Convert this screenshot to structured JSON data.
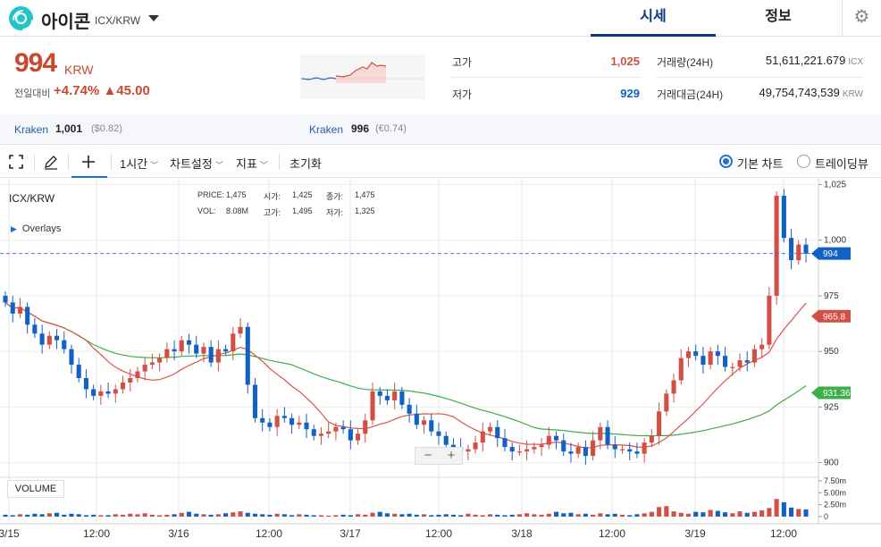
{
  "header": {
    "coin_name": "아이콘",
    "pair_code": "ICX/KRW",
    "tabs": [
      {
        "label": "시세",
        "active": true
      },
      {
        "label": "정보",
        "active": false
      }
    ]
  },
  "price": {
    "current": "994",
    "unit": "KRW",
    "change_label": "전일대비",
    "change_text": "+4.74% ▲45.00",
    "high_label": "고가",
    "high_value": "1,025",
    "low_label": "저가",
    "low_value": "929",
    "volume_label": "거래량(24H)",
    "volume_value": "51,611,221.679",
    "volume_unit": "ICX",
    "amount_label": "거래대금(24H)",
    "amount_value": "49,754,743,539",
    "amount_unit": "KRW"
  },
  "exchanges": [
    {
      "name": "Kraken",
      "price": "1,001",
      "sub": "($0.82)"
    },
    {
      "name": "Kraken",
      "price": "996",
      "sub": "(€0.74)"
    }
  ],
  "toolbar": {
    "interval": "1시간",
    "settings": "차트설정",
    "indicators": "지표",
    "reset": "초기화",
    "basic_chart": "기본 차트",
    "tradingview": "트레이딩뷰"
  },
  "legend": {
    "pair": "ICX/KRW",
    "price_label": "PRICE:",
    "price_value": "1,475",
    "open_label": "시가:",
    "open_value": "1,425",
    "close_label": "종가:",
    "close_value": "1,475",
    "vol_label": "VOL:",
    "vol_value": "8.08M",
    "high_label": "고가:",
    "high_value": "1,495",
    "low_label": "저가:",
    "low_value": "1,325",
    "overlays": "Overlays",
    "volume": "VOLUME"
  },
  "colors": {
    "up": "#d24f45",
    "down": "#1261c4",
    "ma_short": "#e0504a",
    "ma_long": "#3cae4a",
    "brand": "#093687"
  },
  "chart_data": {
    "type": "candlestick",
    "y_ticks": [
      "1,025",
      "1,000",
      "975",
      "950",
      "925",
      "900"
    ],
    "ylim": [
      895,
      1026
    ],
    "x_ticks": [
      "3/15",
      "12:00",
      "3/16",
      "12:00",
      "3/17",
      "12:00",
      "3/18",
      "12:00",
      "3/19",
      "12:00"
    ],
    "price_badges": [
      {
        "label": "994",
        "value": 994,
        "color": "#1261c4"
      },
      {
        "label": "965.8",
        "value": 965.8,
        "color": "#d24f45"
      },
      {
        "label": "931.36",
        "value": 931.36,
        "color": "#3cae4a"
      }
    ],
    "volume_ticks": [
      "7.50m",
      "5.00m",
      "2.50m",
      "0"
    ],
    "candles_close": [
      972,
      967,
      970,
      962,
      958,
      953,
      957,
      955,
      951,
      944,
      938,
      933,
      930,
      932,
      931,
      933,
      936,
      938,
      941,
      944,
      945,
      947,
      951,
      950,
      955,
      953,
      949,
      952,
      945,
      951,
      950,
      958,
      961,
      935,
      920,
      918,
      916,
      921,
      920,
      917,
      918,
      915,
      912,
      913,
      914,
      916,
      915,
      910,
      913,
      919,
      932,
      930,
      928,
      932,
      926,
      922,
      917,
      919,
      914,
      912,
      908,
      907,
      905,
      906,
      909,
      914,
      916,
      911,
      907,
      905,
      905,
      906,
      907,
      908,
      912,
      910,
      905,
      904,
      907,
      903,
      910,
      916,
      908,
      906,
      906,
      905,
      904,
      909,
      912,
      923,
      931,
      937,
      947,
      950,
      948,
      944,
      950,
      948,
      943,
      943,
      946,
      945,
      951,
      953,
      975,
      1020,
      1001,
      991,
      998,
      994
    ],
    "volume_values": [
      0.4,
      0.3,
      0.5,
      0.4,
      0.6,
      0.5,
      0.7,
      0.8,
      0.4,
      0.6,
      0.5,
      0.3,
      0.4,
      0.3,
      0.3,
      0.5,
      0.4,
      0.6,
      0.5,
      0.7,
      0.4,
      0.3,
      0.4,
      0.5,
      0.8,
      1.0,
      0.6,
      0.5,
      0.4,
      0.5,
      0.7,
      0.9,
      1.1,
      0.8,
      0.6,
      0.5,
      0.4,
      0.6,
      0.5,
      0.3,
      0.5,
      0.4,
      0.3,
      0.3,
      0.2,
      0.3,
      0.4,
      0.3,
      0.5,
      0.4,
      0.8,
      1.0,
      0.7,
      0.6,
      0.5,
      0.6,
      0.4,
      0.5,
      0.3,
      0.4,
      0.5,
      0.4,
      0.3,
      0.6,
      0.4,
      0.3,
      0.5,
      0.4,
      0.3,
      0.4,
      0.5,
      0.7,
      0.5,
      0.4,
      0.6,
      1.0,
      0.7,
      0.8,
      0.5,
      0.6,
      0.4,
      0.7,
      0.5,
      0.6,
      0.4,
      0.3,
      0.5,
      0.7,
      1.0,
      2.0,
      2.2,
      1.1,
      0.8,
      0.6,
      1.0,
      0.9,
      1.4,
      1.2,
      0.9,
      0.7,
      1.1,
      0.8,
      1.0,
      1.3,
      1.8,
      3.7,
      3.0,
      1.9,
      1.6,
      1.5
    ]
  }
}
